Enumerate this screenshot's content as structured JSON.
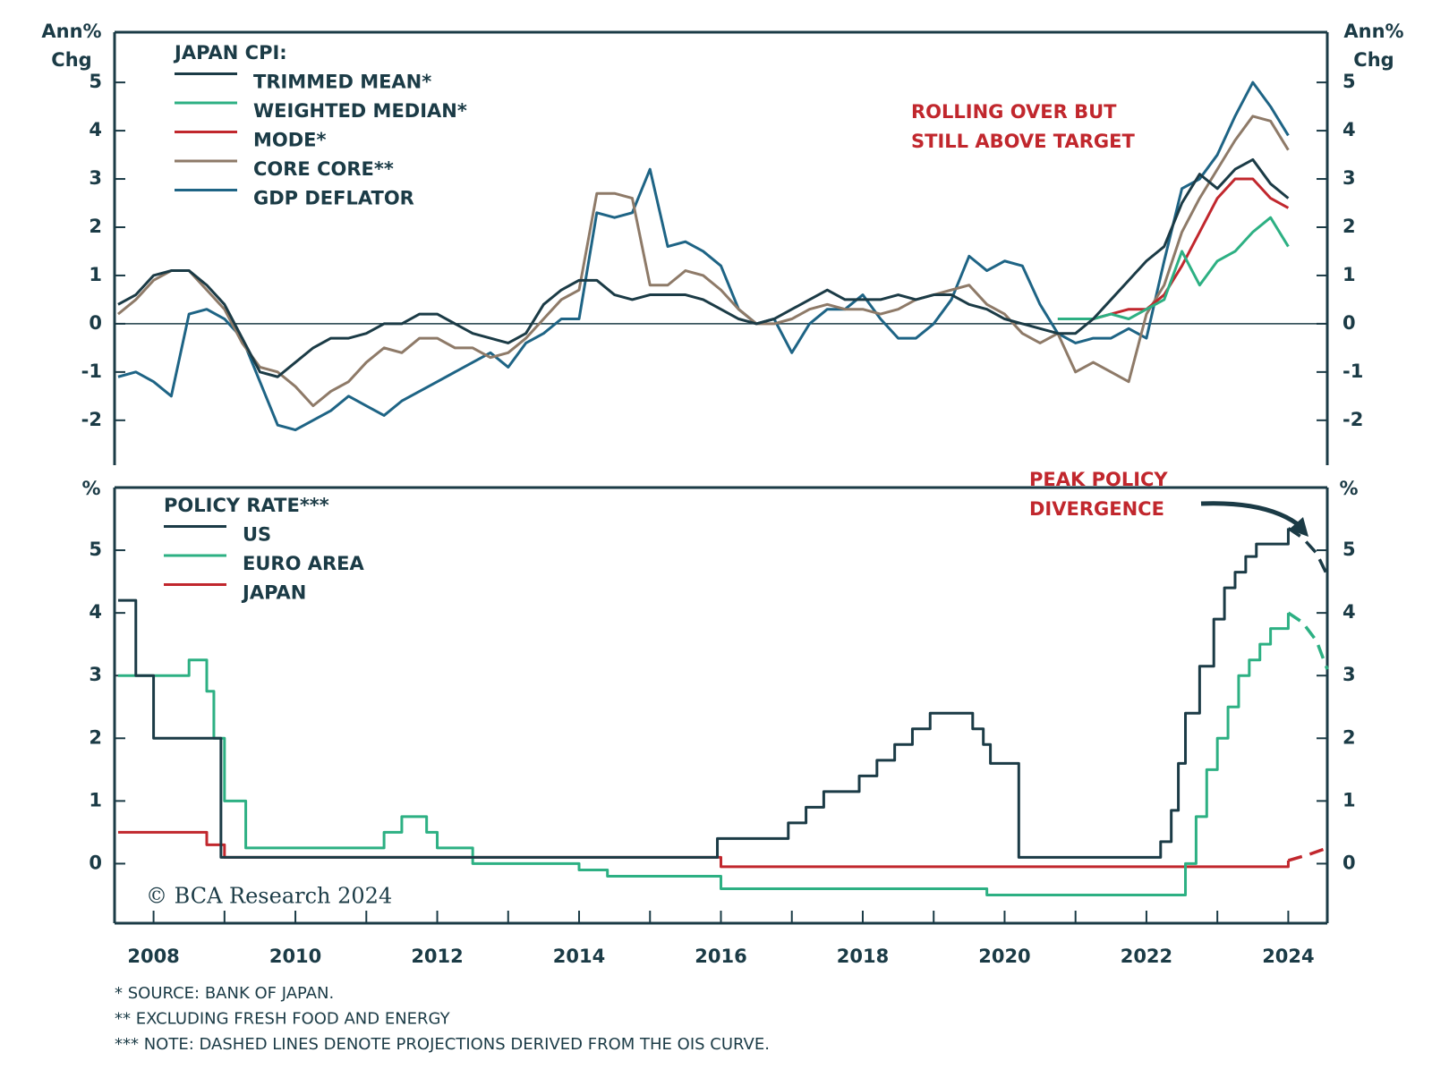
{
  "chart_data": [
    {
      "type": "line",
      "y_label": [
        "Ann%",
        "Chg"
      ],
      "legend_title": "JAPAN CPI:",
      "annotation": [
        "ROLLING OVER BUT",
        "STILL ABOVE TARGET"
      ],
      "xlim": [
        2007.45,
        2024.55
      ],
      "ylim": [
        -2.93,
        6.04
      ],
      "yticks": [
        -2,
        -1,
        0,
        1,
        2,
        3,
        4,
        5
      ],
      "zero_line": true,
      "x": [
        2007.5,
        2007.75,
        2008,
        2008.25,
        2008.5,
        2008.75,
        2009,
        2009.25,
        2009.5,
        2009.75,
        2010,
        2010.25,
        2010.5,
        2010.75,
        2011,
        2011.25,
        2011.5,
        2011.75,
        2012,
        2012.25,
        2012.5,
        2012.75,
        2013,
        2013.25,
        2013.5,
        2013.75,
        2014,
        2014.25,
        2014.5,
        2014.75,
        2015,
        2015.25,
        2015.5,
        2015.75,
        2016,
        2016.25,
        2016.5,
        2016.75,
        2017,
        2017.25,
        2017.5,
        2017.75,
        2018,
        2018.25,
        2018.5,
        2018.75,
        2019,
        2019.25,
        2019.5,
        2019.75,
        2020,
        2020.25,
        2020.5,
        2020.75,
        2021,
        2021.25,
        2021.5,
        2021.75,
        2022,
        2022.25,
        2022.5,
        2022.75,
        2023,
        2023.25,
        2023.5,
        2023.75,
        2024
      ],
      "series": [
        {
          "name": "TRIMMED MEAN*",
          "color": "#1b3b46",
          "values": [
            0.4,
            0.6,
            1.0,
            1.1,
            1.1,
            0.8,
            0.4,
            -0.3,
            -1.0,
            -1.1,
            -0.8,
            -0.5,
            -0.3,
            -0.3,
            -0.2,
            0.0,
            0.0,
            0.2,
            0.2,
            0.0,
            -0.2,
            -0.3,
            -0.4,
            -0.2,
            0.4,
            0.7,
            0.9,
            0.9,
            0.6,
            0.5,
            0.6,
            0.6,
            0.6,
            0.5,
            0.3,
            0.1,
            0.0,
            0.1,
            0.3,
            0.5,
            0.7,
            0.5,
            0.5,
            0.5,
            0.6,
            0.5,
            0.6,
            0.6,
            0.4,
            0.3,
            0.1,
            0.0,
            -0.1,
            -0.2,
            -0.2,
            0.1,
            0.5,
            0.9,
            1.3,
            1.6,
            2.5,
            3.1,
            2.8,
            3.2,
            3.4,
            2.9,
            2.6
          ]
        },
        {
          "name": "WEIGHTED MEDIAN*",
          "color": "#2db083",
          "values": [
            null,
            null,
            null,
            null,
            null,
            null,
            null,
            null,
            null,
            null,
            null,
            null,
            null,
            null,
            null,
            null,
            null,
            null,
            null,
            null,
            null,
            null,
            null,
            null,
            null,
            null,
            null,
            null,
            null,
            null,
            null,
            null,
            null,
            null,
            null,
            null,
            null,
            null,
            null,
            null,
            null,
            null,
            null,
            null,
            null,
            null,
            null,
            null,
            null,
            null,
            null,
            null,
            null,
            0.1,
            0.1,
            0.1,
            0.2,
            0.1,
            0.3,
            0.5,
            1.5,
            0.8,
            1.3,
            1.5,
            1.9,
            2.2,
            1.6
          ]
        },
        {
          "name": "MODE*",
          "color": "#c1272d",
          "values": [
            null,
            null,
            null,
            null,
            null,
            null,
            null,
            null,
            null,
            null,
            null,
            null,
            null,
            null,
            null,
            null,
            null,
            null,
            null,
            null,
            null,
            null,
            null,
            null,
            null,
            null,
            null,
            null,
            null,
            null,
            null,
            null,
            null,
            null,
            null,
            null,
            null,
            null,
            null,
            null,
            null,
            null,
            null,
            null,
            null,
            null,
            null,
            null,
            null,
            null,
            null,
            null,
            null,
            0.1,
            0.1,
            0.1,
            0.2,
            0.3,
            0.3,
            0.6,
            1.2,
            1.9,
            2.6,
            3.0,
            3.0,
            2.6,
            2.4
          ]
        },
        {
          "name": "CORE CORE**",
          "color": "#8e7a68",
          "values": [
            0.2,
            0.5,
            0.9,
            1.1,
            1.1,
            0.7,
            0.3,
            -0.4,
            -0.9,
            -1.0,
            -1.3,
            -1.7,
            -1.4,
            -1.2,
            -0.8,
            -0.5,
            -0.6,
            -0.3,
            -0.3,
            -0.5,
            -0.5,
            -0.7,
            -0.6,
            -0.3,
            0.1,
            0.5,
            0.7,
            2.7,
            2.7,
            2.6,
            0.8,
            0.8,
            1.1,
            1.0,
            0.7,
            0.3,
            0.0,
            0.0,
            0.1,
            0.3,
            0.4,
            0.3,
            0.3,
            0.2,
            0.3,
            0.5,
            0.6,
            0.7,
            0.8,
            0.4,
            0.2,
            -0.2,
            -0.4,
            -0.2,
            -1.0,
            -0.8,
            -1.0,
            -1.2,
            0.2,
            0.8,
            1.9,
            2.6,
            3.2,
            3.8,
            4.3,
            4.2,
            3.6
          ]
        },
        {
          "name": "GDP DEFLATOR",
          "color": "#1e6485",
          "values": [
            -1.1,
            -1.0,
            -1.2,
            -1.5,
            0.2,
            0.3,
            0.1,
            -0.3,
            -1.2,
            -2.1,
            -2.2,
            -2.0,
            -1.8,
            -1.5,
            -1.7,
            -1.9,
            -1.6,
            -1.4,
            -1.2,
            -1.0,
            -0.8,
            -0.6,
            -0.9,
            -0.4,
            -0.2,
            0.1,
            0.1,
            2.3,
            2.2,
            2.3,
            3.2,
            1.6,
            1.7,
            1.5,
            1.2,
            0.3,
            0.0,
            0.1,
            -0.6,
            0.0,
            0.3,
            0.3,
            0.6,
            0.1,
            -0.3,
            -0.3,
            0.0,
            0.5,
            1.4,
            1.1,
            1.3,
            1.2,
            0.4,
            -0.2,
            -0.4,
            -0.3,
            -0.3,
            -0.1,
            -0.3,
            1.3,
            2.8,
            3.0,
            3.5,
            4.3,
            5.0,
            4.5,
            3.9
          ]
        }
      ]
    },
    {
      "type": "step",
      "y_label": "%",
      "legend_title": "POLICY RATE***",
      "annotation": [
        "PEAK POLICY",
        "DIVERGENCE"
      ],
      "source": "© BCA Research 2024",
      "xlim": [
        2007.45,
        2024.55
      ],
      "ylim": [
        -0.95,
        6.0
      ],
      "xticks": [
        2008,
        2010,
        2012,
        2014,
        2016,
        2018,
        2020,
        2022,
        2024
      ],
      "yticks": [
        0,
        1,
        2,
        3,
        4,
        5
      ],
      "series": [
        {
          "name": "US",
          "color": "#1b3b46",
          "x": [
            2007.5,
            2007.75,
            2008,
            2008.25,
            2008.75,
            2008.95,
            2015.95,
            2016.95,
            2017.2,
            2017.45,
            2017.95,
            2018.2,
            2018.45,
            2018.7,
            2018.95,
            2019.55,
            2019.7,
            2019.8,
            2020.2,
            2022.2,
            2022.35,
            2022.45,
            2022.55,
            2022.75,
            2022.95,
            2023.1,
            2023.25,
            2023.4,
            2023.55,
            2024
          ],
          "values": [
            4.2,
            3.0,
            2.0,
            2.0,
            2.0,
            0.1,
            0.4,
            0.65,
            0.9,
            1.15,
            1.4,
            1.65,
            1.9,
            2.15,
            2.4,
            2.15,
            1.9,
            1.6,
            0.1,
            0.35,
            0.85,
            1.6,
            2.4,
            3.15,
            3.9,
            4.4,
            4.65,
            4.9,
            5.1,
            5.35
          ],
          "projection": {
            "x": [
              2024,
              2024.2,
              2024.4,
              2024.55
            ],
            "values": [
              5.35,
              5.2,
              4.95,
              4.6
            ]
          }
        },
        {
          "name": "EURO AREA",
          "color": "#2db083",
          "x": [
            2007.5,
            2008.5,
            2008.75,
            2008.85,
            2009,
            2009.3,
            2011.25,
            2011.5,
            2011.85,
            2012,
            2012.5,
            2014,
            2014.4,
            2015.25,
            2016,
            2019.75,
            2022.55,
            2022.7,
            2022.85,
            2023,
            2023.15,
            2023.3,
            2023.45,
            2023.6,
            2023.75,
            2024
          ],
          "values": [
            3.0,
            3.25,
            2.75,
            2.0,
            1.0,
            0.25,
            0.5,
            0.75,
            0.5,
            0.25,
            0.0,
            -0.1,
            -0.2,
            -0.2,
            -0.4,
            -0.5,
            0.0,
            0.75,
            1.5,
            2.0,
            2.5,
            3.0,
            3.25,
            3.5,
            3.75,
            4.0
          ],
          "projection": {
            "x": [
              2024,
              2024.2,
              2024.4,
              2024.55
            ],
            "values": [
              4.0,
              3.85,
              3.55,
              3.1
            ]
          }
        },
        {
          "name": "JAPAN",
          "color": "#c1272d",
          "x": [
            2007.5,
            2008.75,
            2009,
            2016,
            2024
          ],
          "values": [
            0.5,
            0.3,
            0.1,
            -0.05,
            0.05
          ],
          "projection": {
            "x": [
              2024,
              2024.3,
              2024.55
            ],
            "values": [
              0.05,
              0.15,
              0.25
            ]
          }
        }
      ]
    }
  ],
  "footnotes": [
    "* SOURCE: BANK OF JAPAN.",
    "** EXCLUDING FRESH FOOD AND ENERGY",
    "*** NOTE: DASHED LINES DENOTE PROJECTIONS DERIVED FROM THE OIS CURVE."
  ]
}
